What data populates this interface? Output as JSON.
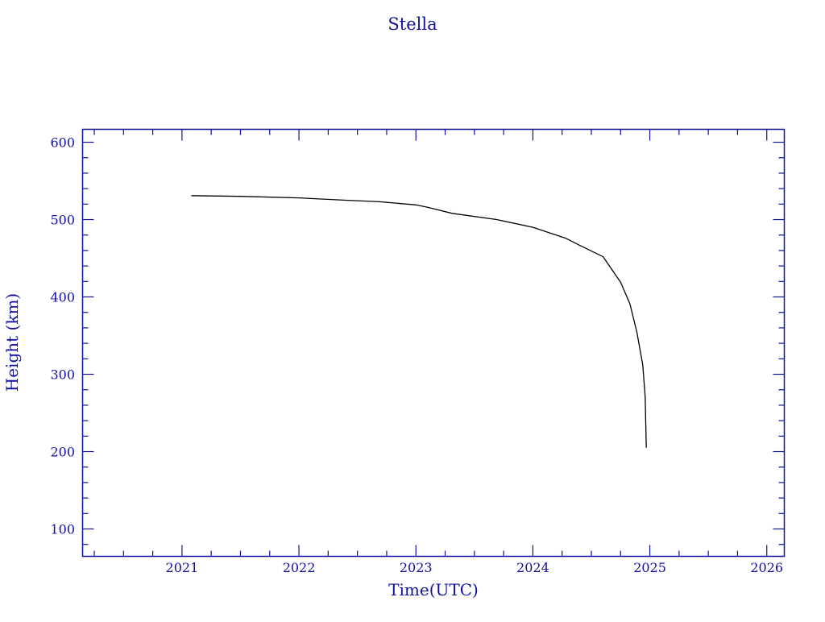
{
  "chart_data": {
    "type": "line",
    "title": "Stella",
    "xlabel": "Time(UTC)",
    "ylabel": "Height (km)",
    "xlim": [
      2020.15,
      2026.15
    ],
    "ylim": [
      64.6,
      616.7
    ],
    "xticks": [
      2021,
      2022,
      2023,
      2024,
      2025,
      2026
    ],
    "xtick_labels": [
      "2021",
      "2022",
      "2023",
      "2024",
      "2025",
      "2026"
    ],
    "yticks": [
      100,
      200,
      300,
      400,
      500,
      600
    ],
    "ytick_labels": [
      "100",
      "200",
      "300",
      "400",
      "500",
      "600"
    ],
    "grid": false,
    "axis_color": "#1010a0",
    "line_color": "#000000",
    "series": [
      {
        "x": [
          2021.08,
          2021.5,
          2022.0,
          2022.4,
          2022.69,
          2023.0,
          2023.1,
          2023.31,
          2023.69,
          2024.0,
          2024.28,
          2024.41,
          2024.6,
          2024.75,
          2024.83,
          2024.89,
          2024.94,
          2024.96,
          2024.97
        ],
        "y": [
          531,
          530,
          528,
          525,
          523,
          519,
          516,
          508,
          500,
          490,
          476,
          466,
          452,
          419,
          391,
          354,
          312,
          271,
          205
        ]
      }
    ]
  }
}
